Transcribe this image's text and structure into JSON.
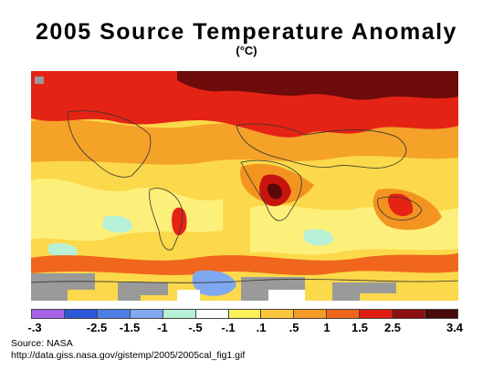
{
  "title": "2005 Source Temperature Anomaly",
  "unit": "(°C)",
  "legend": {
    "colors": [
      "#a763e8",
      "#2b57d9",
      "#4d7ee8",
      "#7fa8f0",
      "#b6f0d6",
      "#ffffff",
      "#fbf05a",
      "#f9c53a",
      "#f59a24",
      "#f0661d",
      "#e01b10",
      "#8c0f0f",
      "#4a0808"
    ],
    "ticks": [
      "-.3",
      "-2.5",
      "-1.5",
      "-1",
      "-.5",
      "-.1",
      ".1",
      ".5",
      "1",
      "1.5",
      "2.5",
      "3.4"
    ]
  },
  "source": "Source: NASA",
  "url": "http://data.giss.nasa.gov/gistemp/2005/2005cal_fig1.gif"
}
